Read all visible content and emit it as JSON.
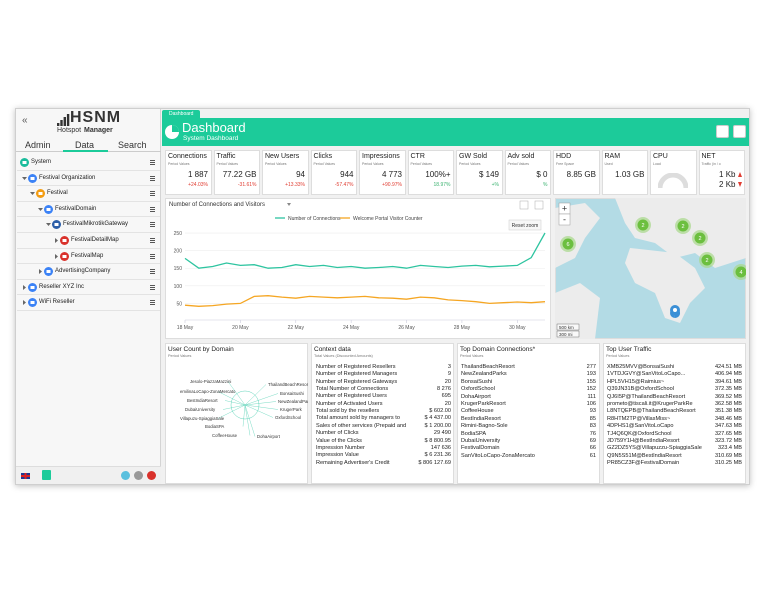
{
  "sidebar": {
    "collapse": "«",
    "logo": {
      "name": "HSNM",
      "line1": "Hotspot",
      "line2": "Manager"
    },
    "tabs": [
      "Admin",
      "Data",
      "Search"
    ],
    "active_tab": 1,
    "tree": [
      {
        "label": "System",
        "level": 0,
        "color": "#1abc9c"
      },
      {
        "label": "Festival Organization",
        "level": 1,
        "color": "#3b82f6"
      },
      {
        "label": "Festival",
        "level": 2,
        "color": "#f39c12"
      },
      {
        "label": "FestivalDomain",
        "level": 3,
        "color": "#3b82f6"
      },
      {
        "label": "FestivalMikrotikGateway",
        "level": 4,
        "color": "#2c5ea8"
      },
      {
        "label": "FestivalDetailMap",
        "level": 5,
        "color": "#d9312b"
      },
      {
        "label": "FestivalMap",
        "level": 5,
        "color": "#d9312b"
      },
      {
        "label": "AdvertisingCompany",
        "level": 3,
        "color": "#3b82f6"
      },
      {
        "label": "Reseller XYZ Inc",
        "level": 1,
        "color": "#3b82f6"
      },
      {
        "label": "WiFi Reseller",
        "level": 1,
        "color": "#3b82f6"
      }
    ]
  },
  "header": {
    "breadcrumb": "Dashboard",
    "title": "Dashboard",
    "subtitle": "System Dashboard"
  },
  "kpis": [
    {
      "title": "Connections",
      "sub": "Period Values",
      "values": [
        "1 887"
      ],
      "change": "+24.03%",
      "change_color": "#e03c31"
    },
    {
      "title": "Traffic",
      "sub": "Period Values",
      "values": [
        "77.22 GB"
      ],
      "change": "-31.61%",
      "change_color": "#e03c31"
    },
    {
      "title": "New Users",
      "sub": "Period Values",
      "values": [
        "94"
      ],
      "change": "+13.33%",
      "change_color": "#e03c31"
    },
    {
      "title": "Clicks",
      "sub": "Period Values",
      "values": [
        "944"
      ],
      "change": "-57.47%",
      "change_color": "#e03c31"
    },
    {
      "title": "Impressions",
      "sub": "Period Values",
      "values": [
        "4 773"
      ],
      "change": "+90.97%",
      "change_color": "#e03c31"
    },
    {
      "title": "CTR",
      "sub": "Period Values",
      "values": [
        "100%+"
      ],
      "change": "18.97%",
      "change_color": "#3cb371"
    },
    {
      "title": "GW Sold",
      "sub": "Period Values",
      "values": [
        "$ 149"
      ],
      "change": "+%",
      "change_color": "#3cb371"
    },
    {
      "title": "Adv sold",
      "sub": "Period Values",
      "values": [
        "$ 0"
      ],
      "change": "%",
      "change_color": "#3cb371"
    },
    {
      "title": "HDD",
      "sub": "Free Space",
      "values": [
        "8.85 GB"
      ]
    },
    {
      "title": "RAM",
      "sub": "Used",
      "values": [
        "1.03 GB"
      ]
    },
    {
      "title": "CPU",
      "sub": "Load",
      "values": [],
      "gauge": true
    },
    {
      "title": "NET",
      "sub": "Traffic (in / o",
      "values": [
        "1 Kb",
        "2 Kb"
      ]
    }
  ],
  "line_chart": {
    "type": "line",
    "title": "Number of Connections and Visitors",
    "reset": "Reset zoom",
    "categories": [
      "18 May",
      null,
      null,
      null,
      "20 May",
      null,
      null,
      null,
      "22 May",
      null,
      null,
      null,
      "24 May",
      null,
      null,
      null,
      "26 May",
      null,
      null,
      null,
      "28 May",
      null,
      null,
      null,
      "30 May",
      null,
      null
    ],
    "series": [
      {
        "name": "Number of Connections",
        "color": "#2ec4a0",
        "values": [
          178,
          150,
          155,
          165,
          158,
          160,
          150,
          152,
          160,
          155,
          158,
          152,
          155,
          150,
          152,
          155,
          150,
          158,
          155,
          152,
          156,
          158,
          154,
          156,
          158,
          180,
          250
        ]
      },
      {
        "name": "Welcome Portal Visitor Counter",
        "color": "#f5a623",
        "values": [
          45,
          42,
          44,
          48,
          50,
          70,
          72,
          68,
          65,
          70,
          68,
          66,
          68,
          70,
          66,
          65,
          62,
          68,
          66,
          60,
          58,
          55,
          50,
          52,
          54,
          52,
          55
        ]
      }
    ],
    "ylim": [
      20,
      270
    ],
    "yticks": [
      50,
      100,
      150,
      200,
      250
    ],
    "grid": true
  },
  "map": {
    "zoom_in": "+",
    "zoom_out": "-",
    "clusters": [
      "2",
      "2",
      "6",
      "2",
      "2",
      "4"
    ],
    "scale": [
      "500 km",
      "300 mi"
    ]
  },
  "user_count": {
    "title": "User Count by Domain",
    "subtitle": "Period Values",
    "nodes": [
      "Jesolo-PiazzaMazzini",
      "emilinaLoCapo-ZonaMercato",
      "BestIndiaResort",
      "DubaiUniversity",
      "Villapuzu-SpiaggiaSale",
      "BodiaSPA",
      "CoffeeHouse",
      "ThailandBeachResort",
      "BonsaiSushi",
      "NewZealandParks",
      "KrugerPark",
      "OxfordSchool",
      "DohaAirport"
    ]
  },
  "context": {
    "title": "Context data",
    "subtitle": "Total Values (Discounted Amounts)",
    "rows": [
      [
        "Number of Registered Resellers",
        "3"
      ],
      [
        "Number of Registered Managers",
        "9"
      ],
      [
        "Number of Registered Gateways",
        "20"
      ],
      [
        "Total Number of Connections",
        "8 276"
      ],
      [
        "Number of Registered Users",
        "695"
      ],
      [
        "Number of Activated Users",
        "20"
      ],
      [
        "Total sold by the resellers",
        "$ 602.00"
      ],
      [
        "Total amount sold by managers to",
        "$ 4 437.00"
      ],
      [
        "Sales of other services (Prepaid and",
        "$ 1 200.00"
      ],
      [
        "Number of Clicks",
        "29 490"
      ],
      [
        "Value of the Clicks",
        "$ 8 800.95"
      ],
      [
        "Impression Number",
        "147 636"
      ],
      [
        "Impression Value",
        "$ 6 231.36"
      ],
      [
        "Remaining Advertiser's Credit",
        "$ 806 127.69"
      ]
    ]
  },
  "top_domains": {
    "title": "Top Domain Connections*",
    "subtitle": "Period Values",
    "rows": [
      [
        "ThailandBeachResort",
        "277"
      ],
      [
        "NewZealandParks",
        "193"
      ],
      [
        "BonsaiSushi",
        "155"
      ],
      [
        "OxfordSchool",
        "152"
      ],
      [
        "DohaAirport",
        "111"
      ],
      [
        "KrugerParkResort",
        "106"
      ],
      [
        "CoffeeHouse",
        "93"
      ],
      [
        "BestIndiaResort",
        "85"
      ],
      [
        "Rimini-Bagno-Sole",
        "83"
      ],
      [
        "BodiaSPA",
        "76"
      ],
      [
        "DubaiUniversity",
        "69"
      ],
      [
        "FestivalDomain",
        "66"
      ],
      [
        "SanVitoLoCapo-ZonaMercato",
        "61"
      ]
    ]
  },
  "top_traffic": {
    "title": "Top User Traffic",
    "subtitle": "Period Values",
    "rows": [
      [
        "XMB25MVV@BonsaiSushi",
        "424.51 MB"
      ],
      [
        "1VTDJGVY@SanVitoLoCapo...",
        "406.94 MB"
      ],
      [
        "HPL5VH15@Raimius~",
        "394.61 MB"
      ],
      [
        "Q39JN31B@OxfordSchool",
        "372.35 MB"
      ],
      [
        "QJ6I5P@ThailandBeachResort",
        "369.52 MB"
      ],
      [
        "prometo@tiscali.it@KrugerParkRe",
        "362.58 MB"
      ],
      [
        "L8NTQEPB@ThailandBeachResort",
        "351.38 MB"
      ],
      [
        "R8HTM2TP@VillasMiss~",
        "348.46 MB"
      ],
      [
        "4DPHS1@SanVitoLoCapo",
        "347.63 MB"
      ],
      [
        "TJ4Q6QK@OxfordSchool",
        "327.65 MB"
      ],
      [
        "JD759Y1H@BestIndiaResort",
        "323.72 MB"
      ],
      [
        "GZ2DZ5YS@Villapuzzu-SpiaggiaSale",
        "323.4 MB"
      ],
      [
        "Q9N5S51M@BestIndiaResort",
        "310.69 MB"
      ],
      [
        "PR85CZ3F@FestivalDomain",
        "310.25 MB"
      ]
    ]
  }
}
